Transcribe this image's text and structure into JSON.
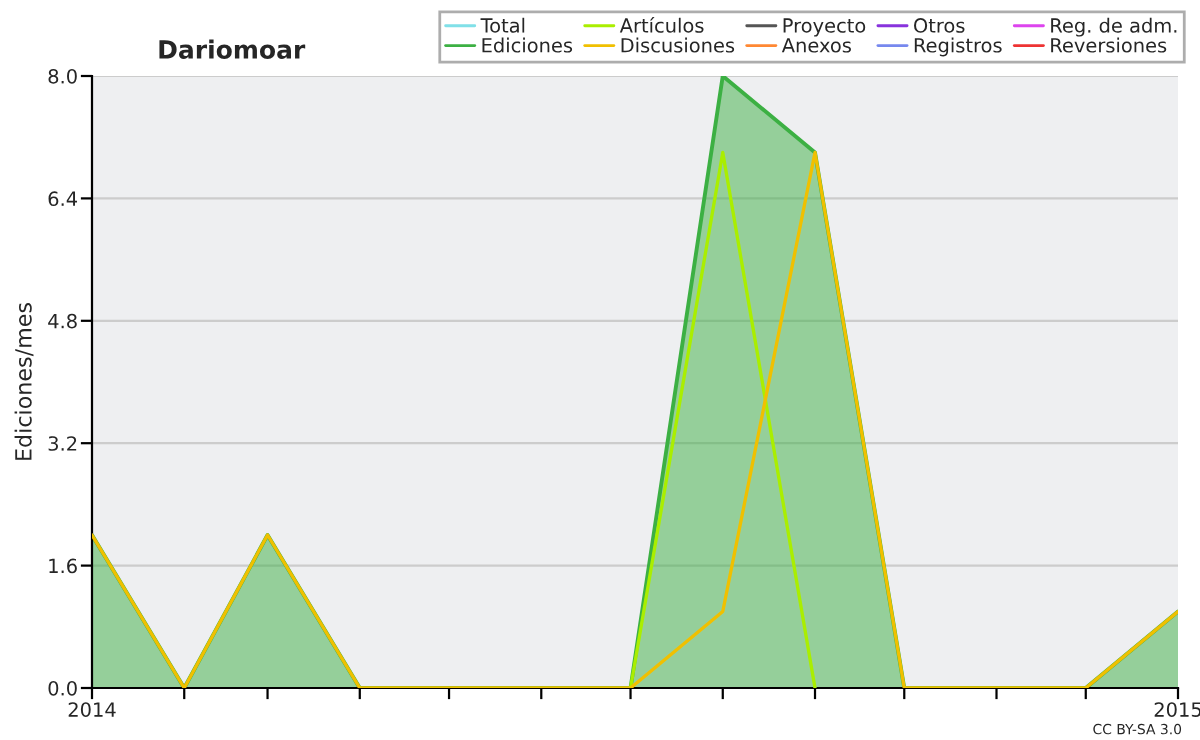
{
  "chart_data": {
    "type": "line",
    "title": "Dariomoar",
    "ylabel": "Ediciones/mes",
    "annotations": [
      "CC BY-SA 3.0"
    ],
    "x": [
      "2014-01",
      "2014-02",
      "2014-03",
      "2014-04",
      "2014-05",
      "2014-06",
      "2014-07",
      "2014-08",
      "2014-09",
      "2014-10",
      "2014-11",
      "2014-12",
      "2015-01"
    ],
    "xlim": [
      "2014-01",
      "2015-01"
    ],
    "xticks": [
      {
        "value": "2014-01",
        "label": "2014"
      },
      {
        "value": "2014-02",
        "label": null
      },
      {
        "value": "2014-03",
        "label": null
      },
      {
        "value": "2014-04",
        "label": null
      },
      {
        "value": "2014-05",
        "label": null
      },
      {
        "value": "2014-06",
        "label": null
      },
      {
        "value": "2014-07",
        "label": null
      },
      {
        "value": "2014-08",
        "label": null
      },
      {
        "value": "2014-09",
        "label": null
      },
      {
        "value": "2014-10",
        "label": null
      },
      {
        "value": "2014-11",
        "label": null
      },
      {
        "value": "2014-12",
        "label": null
      },
      {
        "value": "2015-01",
        "label": "2015"
      }
    ],
    "ylim": [
      0,
      8
    ],
    "yticks": [
      {
        "value": 0,
        "label": "0.0"
      },
      1.6,
      3.2,
      4.8,
      6.4,
      {
        "value": 8,
        "label": "8.0"
      }
    ],
    "grid": "y",
    "legend": "top right",
    "series": [
      {
        "name": "Total",
        "color": "#80e0e8",
        "values": [
          null,
          null,
          null,
          null,
          null,
          null,
          null,
          null,
          null,
          null,
          null,
          null,
          null
        ]
      },
      {
        "name": "Ediciones",
        "type": "area",
        "color": "#3cb043",
        "values": [
          2,
          0,
          2,
          0,
          0,
          0,
          0,
          8,
          7,
          0,
          0,
          0,
          1
        ]
      },
      {
        "name": "Artículos",
        "color": "#aaee00",
        "values": [
          null,
          null,
          null,
          null,
          null,
          null,
          0,
          7,
          0,
          null,
          null,
          null,
          null
        ]
      },
      {
        "name": "Discusiones",
        "color": "#f0c000",
        "values": [
          2,
          0,
          2,
          0,
          0,
          0,
          0,
          1,
          7,
          0,
          0,
          0,
          1
        ]
      },
      {
        "name": "Proyecto",
        "color": "#555555",
        "values": [
          null,
          null,
          null,
          null,
          null,
          null,
          null,
          null,
          null,
          null,
          null,
          null,
          null
        ]
      },
      {
        "name": "Anexos",
        "color": "#ff8833",
        "values": [
          null,
          null,
          null,
          null,
          null,
          null,
          null,
          null,
          null,
          null,
          null,
          null,
          null
        ]
      },
      {
        "name": "Otros",
        "color": "#8833dd",
        "values": [
          null,
          null,
          null,
          null,
          null,
          null,
          null,
          null,
          null,
          null,
          null,
          null,
          null
        ]
      },
      {
        "name": "Registros",
        "color": "#7788ee",
        "values": [
          null,
          null,
          null,
          null,
          null,
          null,
          null,
          null,
          null,
          null,
          null,
          null,
          null
        ]
      },
      {
        "name": "Reg. de adm.",
        "color": "#dd44ee",
        "values": [
          null,
          null,
          null,
          null,
          null,
          null,
          null,
          null,
          null,
          null,
          null,
          null,
          null
        ]
      },
      {
        "name": "Reversiones",
        "color": "#ee3333",
        "values": [
          null,
          null,
          null,
          null,
          null,
          null,
          null,
          null,
          null,
          null,
          null,
          null,
          null
        ]
      }
    ]
  }
}
